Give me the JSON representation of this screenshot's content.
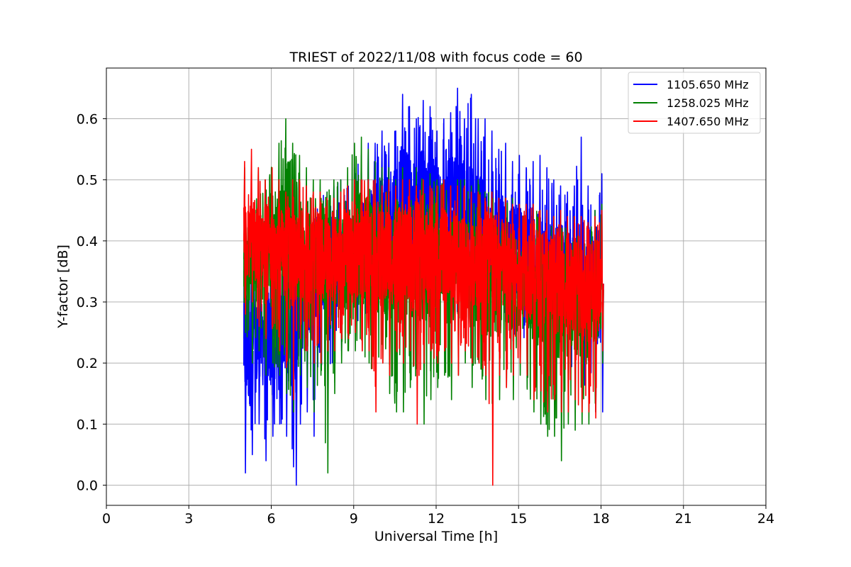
{
  "chart_data": {
    "type": "line",
    "title": "TRIEST of 2022/11/08 with focus code = 60",
    "xlabel": "Universal Time [h]",
    "ylabel": "Y-factor [dB]",
    "xlim": [
      0,
      24
    ],
    "ylim": [
      -0.033,
      0.683
    ],
    "xticks": [
      0,
      3,
      6,
      9,
      12,
      15,
      18,
      21,
      24
    ],
    "yticks": [
      0.0,
      0.1,
      0.2,
      0.3,
      0.4,
      0.5,
      0.6
    ],
    "ytick_labels": [
      "0.0",
      "0.1",
      "0.2",
      "0.3",
      "0.4",
      "0.5",
      "0.6"
    ],
    "grid": true,
    "legend_position": "top-right",
    "series": [
      {
        "name": "1105.650 MHz",
        "color": "#0000ff",
        "x": [
          5.0,
          5.25,
          5.5,
          5.75,
          6.0,
          6.25,
          6.5,
          6.75,
          6.85,
          7.0,
          7.25,
          7.5,
          7.75,
          8.0,
          8.25,
          8.5,
          8.75,
          9.0,
          9.25,
          9.5,
          9.75,
          10.0,
          10.25,
          10.5,
          10.75,
          11.0,
          11.25,
          11.5,
          11.75,
          12.0,
          12.25,
          12.5,
          12.75,
          13.0,
          13.25,
          13.5,
          13.75,
          14.0,
          14.25,
          14.5,
          14.75,
          15.0,
          15.25,
          15.5,
          15.75,
          16.0,
          16.25,
          16.5,
          16.75,
          17.0,
          17.25,
          17.5,
          17.75,
          18.0
        ],
        "mean": [
          0.24,
          0.22,
          0.23,
          0.25,
          0.24,
          0.27,
          0.28,
          0.25,
          0.22,
          0.3,
          0.32,
          0.34,
          0.33,
          0.34,
          0.35,
          0.36,
          0.37,
          0.38,
          0.39,
          0.4,
          0.42,
          0.44,
          0.45,
          0.46,
          0.47,
          0.46,
          0.45,
          0.47,
          0.46,
          0.45,
          0.44,
          0.45,
          0.44,
          0.45,
          0.43,
          0.42,
          0.41,
          0.4,
          0.4,
          0.39,
          0.38,
          0.37,
          0.38,
          0.37,
          0.36,
          0.35,
          0.34,
          0.35,
          0.34,
          0.33,
          0.32,
          0.33,
          0.32,
          0.33
        ],
        "max": [
          0.43,
          0.38,
          0.36,
          0.37,
          0.38,
          0.4,
          0.42,
          0.38,
          0.36,
          0.42,
          0.45,
          0.46,
          0.47,
          0.48,
          0.49,
          0.5,
          0.49,
          0.52,
          0.54,
          0.56,
          0.56,
          0.58,
          0.56,
          0.58,
          0.64,
          0.62,
          0.6,
          0.63,
          0.62,
          0.58,
          0.6,
          0.61,
          0.65,
          0.6,
          0.64,
          0.6,
          0.6,
          0.58,
          0.55,
          0.56,
          0.53,
          0.54,
          0.52,
          0.53,
          0.54,
          0.52,
          0.5,
          0.49,
          0.48,
          0.49,
          0.57,
          0.49,
          0.45,
          0.51
        ],
        "min": [
          0.02,
          0.05,
          0.1,
          0.04,
          0.08,
          0.1,
          0.08,
          0.03,
          0.0,
          0.1,
          0.12,
          0.08,
          0.2,
          0.18,
          0.2,
          0.22,
          0.25,
          0.26,
          0.27,
          0.28,
          0.3,
          0.3,
          0.32,
          0.3,
          0.32,
          0.3,
          0.31,
          0.3,
          0.31,
          0.3,
          0.29,
          0.3,
          0.28,
          0.28,
          0.28,
          0.27,
          0.26,
          0.25,
          0.24,
          0.24,
          0.22,
          0.22,
          0.24,
          0.22,
          0.2,
          0.2,
          0.2,
          0.18,
          0.18,
          0.17,
          0.15,
          0.14,
          0.12,
          0.12
        ]
      },
      {
        "name": "1258.025 MHz",
        "color": "#008000",
        "x": [
          5.0,
          5.25,
          5.5,
          5.75,
          6.0,
          6.25,
          6.5,
          6.75,
          7.0,
          7.25,
          7.5,
          7.75,
          8.0,
          8.25,
          8.5,
          8.75,
          9.0,
          9.25,
          9.5,
          9.75,
          10.0,
          10.25,
          10.5,
          10.75,
          11.0,
          11.25,
          11.5,
          11.75,
          12.0,
          12.25,
          12.5,
          12.75,
          13.0,
          13.25,
          13.5,
          13.75,
          14.0,
          14.25,
          14.5,
          14.75,
          15.0,
          15.25,
          15.5,
          15.75,
          16.0,
          16.25,
          16.5,
          16.75,
          17.0,
          17.25,
          17.5,
          17.75,
          18.0
        ],
        "mean": [
          0.37,
          0.36,
          0.38,
          0.37,
          0.38,
          0.4,
          0.44,
          0.42,
          0.38,
          0.37,
          0.36,
          0.37,
          0.35,
          0.36,
          0.36,
          0.37,
          0.38,
          0.39,
          0.38,
          0.38,
          0.37,
          0.37,
          0.36,
          0.37,
          0.36,
          0.37,
          0.36,
          0.36,
          0.35,
          0.36,
          0.35,
          0.35,
          0.35,
          0.34,
          0.35,
          0.34,
          0.34,
          0.33,
          0.33,
          0.33,
          0.33,
          0.32,
          0.32,
          0.32,
          0.31,
          0.3,
          0.31,
          0.3,
          0.31,
          0.29,
          0.28,
          0.3,
          0.32
        ],
        "max": [
          0.52,
          0.5,
          0.52,
          0.5,
          0.52,
          0.56,
          0.6,
          0.56,
          0.54,
          0.52,
          0.5,
          0.5,
          0.48,
          0.5,
          0.5,
          0.52,
          0.56,
          0.57,
          0.55,
          0.53,
          0.52,
          0.52,
          0.5,
          0.52,
          0.5,
          0.52,
          0.5,
          0.51,
          0.5,
          0.5,
          0.49,
          0.5,
          0.5,
          0.49,
          0.5,
          0.48,
          0.48,
          0.47,
          0.47,
          0.47,
          0.46,
          0.45,
          0.46,
          0.45,
          0.44,
          0.44,
          0.44,
          0.43,
          0.44,
          0.42,
          0.42,
          0.45,
          0.46
        ],
        "min": [
          0.25,
          0.2,
          0.22,
          0.18,
          0.2,
          0.18,
          0.15,
          0.12,
          0.18,
          0.16,
          0.12,
          0.18,
          0.02,
          0.15,
          0.2,
          0.22,
          0.22,
          0.22,
          0.2,
          0.18,
          0.2,
          0.15,
          0.12,
          0.12,
          0.16,
          0.18,
          0.1,
          0.14,
          0.16,
          0.18,
          0.14,
          0.18,
          0.2,
          0.16,
          0.2,
          0.14,
          0.12,
          0.14,
          0.16,
          0.14,
          0.18,
          0.16,
          0.12,
          0.1,
          0.08,
          0.08,
          0.04,
          0.1,
          0.09,
          0.1,
          0.1,
          0.12,
          0.2
        ]
      },
      {
        "name": "1407.650 MHz",
        "color": "#ff0000",
        "x": [
          5.0,
          5.25,
          5.5,
          5.75,
          6.0,
          6.25,
          6.5,
          6.75,
          7.0,
          7.25,
          7.5,
          7.75,
          8.0,
          8.25,
          8.5,
          8.75,
          9.0,
          9.25,
          9.5,
          9.75,
          10.0,
          10.25,
          10.5,
          10.75,
          11.0,
          11.25,
          11.5,
          11.75,
          12.0,
          12.25,
          12.5,
          12.75,
          13.0,
          13.25,
          13.5,
          13.75,
          14.0,
          14.25,
          14.5,
          14.75,
          15.0,
          15.25,
          15.5,
          15.75,
          16.0,
          16.25,
          16.5,
          16.75,
          17.0,
          17.25,
          17.5,
          17.75,
          18.0
        ],
        "mean": [
          0.4,
          0.41,
          0.4,
          0.39,
          0.39,
          0.38,
          0.37,
          0.38,
          0.38,
          0.38,
          0.37,
          0.37,
          0.36,
          0.37,
          0.37,
          0.38,
          0.38,
          0.38,
          0.38,
          0.38,
          0.37,
          0.38,
          0.37,
          0.38,
          0.38,
          0.37,
          0.38,
          0.37,
          0.37,
          0.38,
          0.37,
          0.37,
          0.37,
          0.36,
          0.37,
          0.36,
          0.36,
          0.35,
          0.36,
          0.35,
          0.35,
          0.35,
          0.35,
          0.34,
          0.34,
          0.33,
          0.34,
          0.33,
          0.33,
          0.32,
          0.32,
          0.32,
          0.33
        ],
        "max": [
          0.53,
          0.55,
          0.52,
          0.5,
          0.52,
          0.5,
          0.48,
          0.5,
          0.5,
          0.49,
          0.48,
          0.48,
          0.47,
          0.47,
          0.48,
          0.49,
          0.5,
          0.5,
          0.5,
          0.5,
          0.49,
          0.5,
          0.49,
          0.5,
          0.5,
          0.49,
          0.5,
          0.49,
          0.49,
          0.5,
          0.49,
          0.49,
          0.49,
          0.48,
          0.48,
          0.47,
          0.48,
          0.47,
          0.47,
          0.46,
          0.46,
          0.46,
          0.46,
          0.45,
          0.45,
          0.44,
          0.45,
          0.44,
          0.44,
          0.44,
          0.43,
          0.44,
          0.45
        ],
        "min": [
          0.28,
          0.3,
          0.26,
          0.24,
          0.26,
          0.22,
          0.2,
          0.14,
          0.24,
          0.22,
          0.2,
          0.2,
          0.22,
          0.22,
          0.24,
          0.24,
          0.25,
          0.22,
          0.22,
          0.12,
          0.2,
          0.18,
          0.22,
          0.2,
          0.22,
          0.1,
          0.2,
          0.22,
          0.2,
          0.22,
          0.2,
          0.18,
          0.22,
          0.2,
          0.2,
          0.18,
          0.0,
          0.18,
          0.16,
          0.18,
          0.2,
          0.18,
          0.14,
          0.16,
          0.12,
          0.14,
          0.12,
          0.12,
          0.14,
          0.12,
          0.12,
          0.11,
          0.22
        ]
      }
    ]
  }
}
